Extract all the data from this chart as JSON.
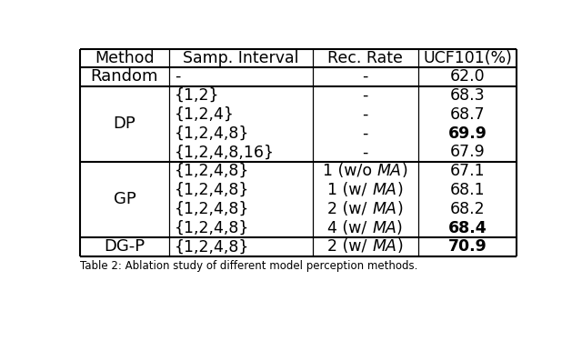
{
  "columns": [
    "Method",
    "Samp. Interval",
    "Rec. Rate",
    "UCF101(%)"
  ],
  "rows": [
    {
      "method": "Random",
      "samp_interval": "-",
      "rec_rate_parts": [
        "-"
      ],
      "rec_rate_italic": [
        false
      ],
      "ucf101": "62.0",
      "bold_ucf": false
    },
    {
      "method": "DP",
      "samp_interval": "{1,2}",
      "rec_rate_parts": [
        "-"
      ],
      "rec_rate_italic": [
        false
      ],
      "ucf101": "68.3",
      "bold_ucf": false
    },
    {
      "method": "DP",
      "samp_interval": "{1,2,4}",
      "rec_rate_parts": [
        "-"
      ],
      "rec_rate_italic": [
        false
      ],
      "ucf101": "68.7",
      "bold_ucf": false
    },
    {
      "method": "DP",
      "samp_interval": "{1,2,4,8}",
      "rec_rate_parts": [
        "-"
      ],
      "rec_rate_italic": [
        false
      ],
      "ucf101": "69.9",
      "bold_ucf": true
    },
    {
      "method": "DP",
      "samp_interval": "{1,2,4,8,16}",
      "rec_rate_parts": [
        "-"
      ],
      "rec_rate_italic": [
        false
      ],
      "ucf101": "67.9",
      "bold_ucf": false
    },
    {
      "method": "GP",
      "samp_interval": "{1,2,4,8}",
      "rec_rate_parts": [
        "1 (w/o ",
        "MA",
        ")"
      ],
      "rec_rate_italic": [
        false,
        true,
        false
      ],
      "ucf101": "67.1",
      "bold_ucf": false
    },
    {
      "method": "GP",
      "samp_interval": "{1,2,4,8}",
      "rec_rate_parts": [
        "1 (w/ ",
        "MA",
        ")"
      ],
      "rec_rate_italic": [
        false,
        true,
        false
      ],
      "ucf101": "68.1",
      "bold_ucf": false
    },
    {
      "method": "GP",
      "samp_interval": "{1,2,4,8}",
      "rec_rate_parts": [
        "2 (w/ ",
        "MA",
        ")"
      ],
      "rec_rate_italic": [
        false,
        true,
        false
      ],
      "ucf101": "68.2",
      "bold_ucf": false
    },
    {
      "method": "GP",
      "samp_interval": "{1,2,4,8}",
      "rec_rate_parts": [
        "4 (w/ ",
        "MA",
        ")"
      ],
      "rec_rate_italic": [
        false,
        true,
        false
      ],
      "ucf101": "68.4",
      "bold_ucf": true
    },
    {
      "method": "DG-P",
      "samp_interval": "{1,2,4,8}",
      "rec_rate_parts": [
        "2 (w/ ",
        "MA",
        ")"
      ],
      "rec_rate_italic": [
        false,
        true,
        false
      ],
      "ucf101": "70.9",
      "bold_ucf": true
    }
  ],
  "groups": [
    {
      "name": "Random",
      "rows": [
        0
      ]
    },
    {
      "name": "DP",
      "rows": [
        1,
        2,
        3,
        4
      ]
    },
    {
      "name": "GP",
      "rows": [
        5,
        6,
        7,
        8
      ]
    },
    {
      "name": "DG-P",
      "rows": [
        9
      ]
    }
  ],
  "thick_lines_after_rows": [
    -1,
    0,
    4,
    8,
    9
  ],
  "bg_color": "#ffffff",
  "text_color": "#000000",
  "font_size": 12.5,
  "caption": "Table 2: Ablation study of different model perception methods."
}
